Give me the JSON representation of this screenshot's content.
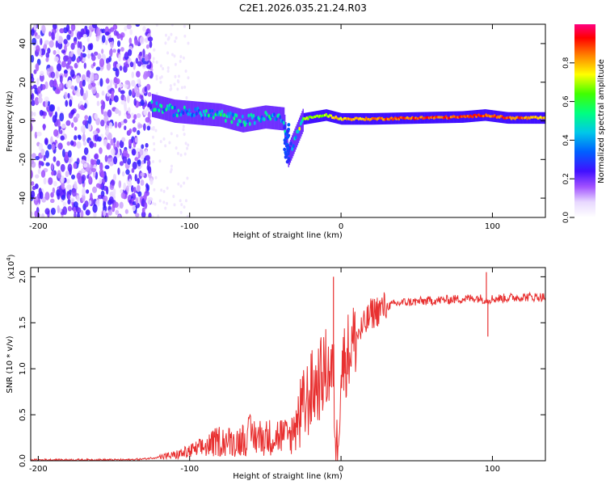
{
  "title": "C2E1.2026.035.21.24.R03",
  "chart_data": [
    {
      "type": "heatmap",
      "xlabel": "Height of straight line (km)",
      "ylabel": "Frequency (Hz)",
      "xlim": [
        -205,
        135
      ],
      "ylim": [
        -50,
        50
      ],
      "xticks": [
        -200,
        -100,
        0,
        100
      ],
      "xtick_labels": [
        "-200",
        "-100",
        "0",
        "100"
      ],
      "yticks": [
        -40,
        -20,
        0,
        20,
        40
      ],
      "ytick_labels": [
        "-40",
        "-20",
        "0",
        "20",
        "40"
      ],
      "colorbar": {
        "label": "Normalized spectral amplitude",
        "range": [
          0,
          1
        ],
        "ticks": [
          0.0,
          0.2,
          0.4,
          0.6,
          0.8
        ],
        "tick_labels": [
          "0.0",
          "0.2",
          "0.4",
          "0.6",
          "0.8"
        ]
      },
      "ridge": [
        {
          "x": -125,
          "freq": 8,
          "amp": 0.5
        },
        {
          "x": -110,
          "freq": 5,
          "amp": 0.45
        },
        {
          "x": -95,
          "freq": 4,
          "amp": 0.45
        },
        {
          "x": -80,
          "freq": 3,
          "amp": 0.5
        },
        {
          "x": -65,
          "freq": 0,
          "amp": 0.45
        },
        {
          "x": -50,
          "freq": 2,
          "amp": 0.5
        },
        {
          "x": -38,
          "freq": 1,
          "amp": 0.5
        },
        {
          "x": -35,
          "freq": -18,
          "amp": 0.3
        },
        {
          "x": -25,
          "freq": 1,
          "amp": 0.7
        },
        {
          "x": -10,
          "freq": 3,
          "amp": 0.7
        },
        {
          "x": 0,
          "freq": 1,
          "amp": 0.8
        },
        {
          "x": 20,
          "freq": 1,
          "amp": 0.85
        },
        {
          "x": 50,
          "freq": 1.5,
          "amp": 0.9
        },
        {
          "x": 80,
          "freq": 2,
          "amp": 0.9
        },
        {
          "x": 95,
          "freq": 3,
          "amp": 0.9
        },
        {
          "x": 110,
          "freq": 1.5,
          "amp": 0.9
        },
        {
          "x": 135,
          "freq": 1.5,
          "amp": 0.8
        }
      ]
    },
    {
      "type": "line",
      "xlabel": "Height of straight line (km)",
      "ylabel": "SNR (10 * v/v)",
      "multiplier_label": "(x10",
      "multiplier_exp": "4",
      "multiplier_close": ")",
      "xlim": [
        -205,
        135
      ],
      "ylim": [
        0,
        2.1
      ],
      "xticks": [
        -200,
        -100,
        0,
        100
      ],
      "xtick_labels": [
        "-200",
        "-100",
        "0",
        "100"
      ],
      "yticks": [
        0.0,
        0.5,
        1.0,
        1.5,
        2.0
      ],
      "ytick_labels": [
        "0.0",
        "0.5",
        "1.0",
        "1.5",
        "2.0"
      ],
      "color": "#e83030",
      "series": [
        {
          "name": "SNR",
          "x": [
            -205,
            -180,
            -160,
            -140,
            -130,
            -120,
            -110,
            -100,
            -90,
            -80,
            -70,
            -60,
            -50,
            -40,
            -35,
            -30,
            -25,
            -20,
            -15,
            -10,
            -5,
            -3,
            0,
            5,
            10,
            15,
            20,
            30,
            40,
            60,
            80,
            90,
            96,
            100,
            110,
            120,
            135
          ],
          "values": [
            0.01,
            0.01,
            0.01,
            0.01,
            0.02,
            0.04,
            0.06,
            0.1,
            0.15,
            0.22,
            0.2,
            0.28,
            0.25,
            0.28,
            0.25,
            0.35,
            0.55,
            0.75,
            0.85,
            1.0,
            0.95,
            0.0,
            1.0,
            1.2,
            1.35,
            1.45,
            1.6,
            1.68,
            1.72,
            1.74,
            1.76,
            1.77,
            1.75,
            1.76,
            1.77,
            1.78,
            1.78
          ]
        }
      ],
      "spikes": [
        {
          "x": -5,
          "value": 2.0
        },
        {
          "x": -3,
          "value": 0.0
        },
        {
          "x": 96,
          "value": 2.05
        },
        {
          "x": 97,
          "value": 1.35
        }
      ]
    }
  ]
}
